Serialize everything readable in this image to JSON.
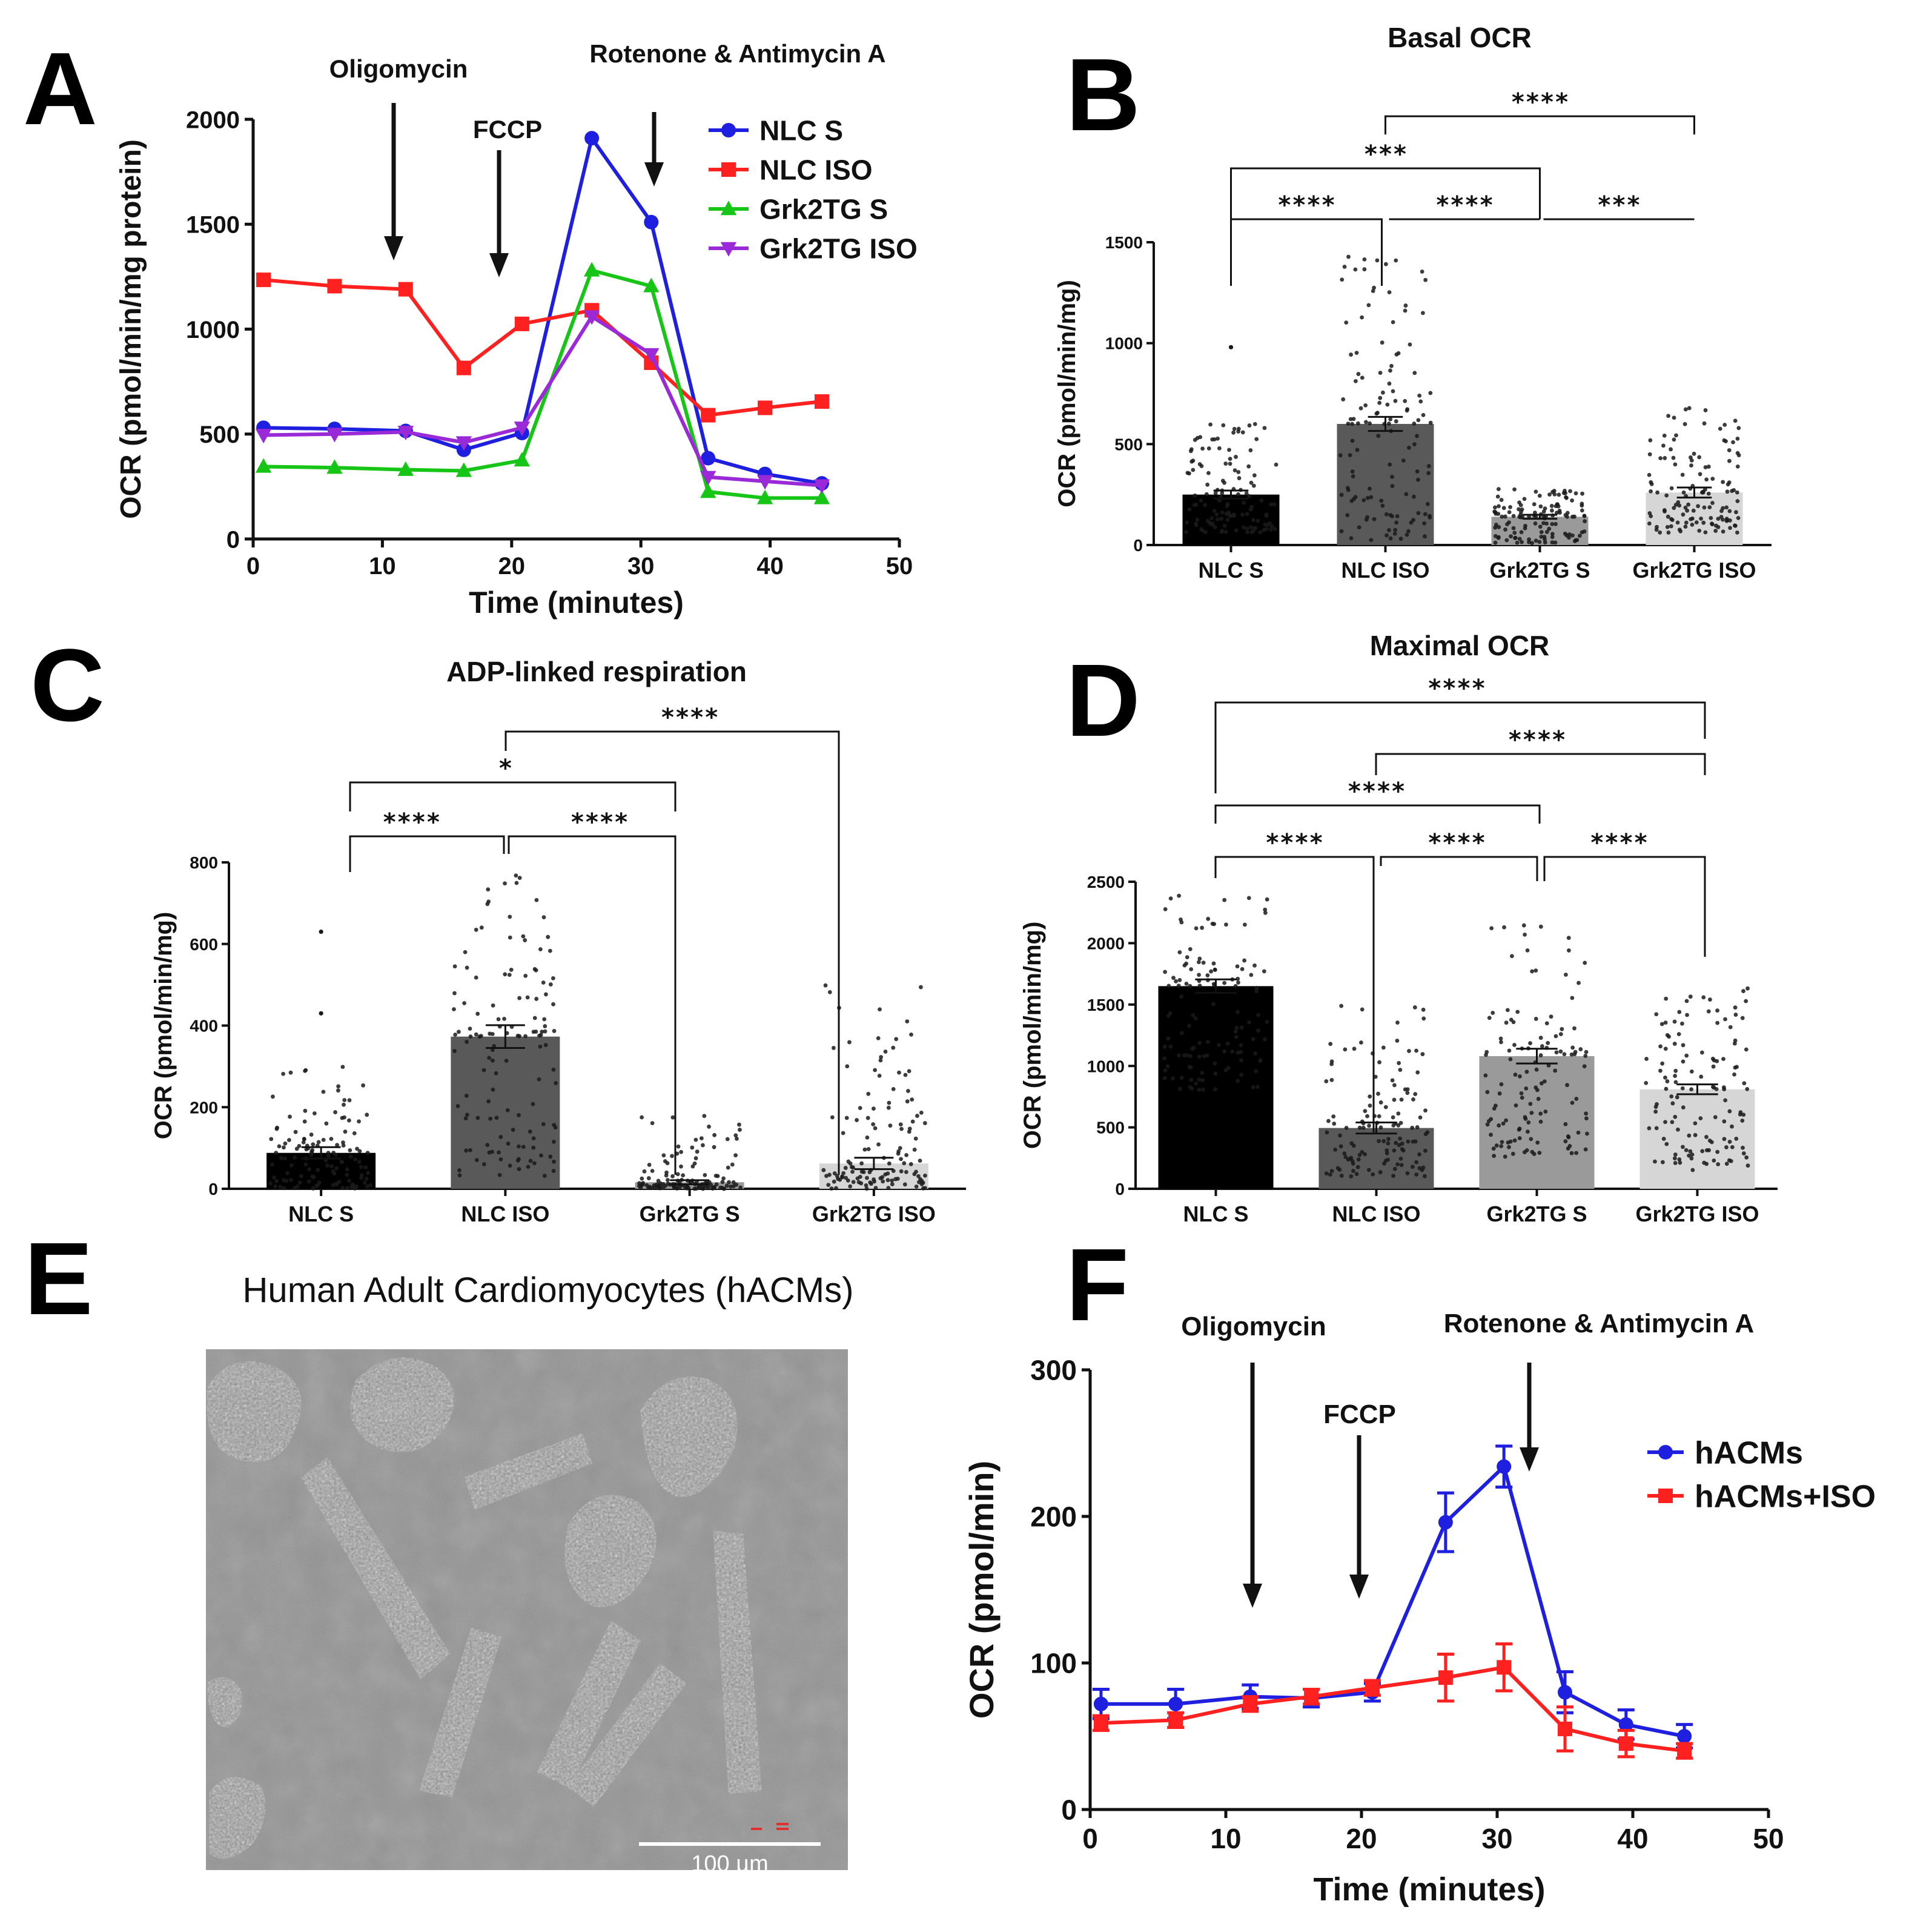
{
  "panel_labels": {
    "A": "A",
    "B": "B",
    "C": "C",
    "D": "D",
    "E": "E",
    "F": "F"
  },
  "chart_data": [
    {
      "id": "A",
      "type": "line",
      "title": "",
      "xlabel": "Time (minutes)",
      "ylabel": "OCR (pmol/min/mg protein)",
      "xlim": [
        0,
        50
      ],
      "ylim": [
        0,
        2000
      ],
      "xticks": [
        0,
        10,
        20,
        30,
        40,
        50
      ],
      "yticks": [
        0,
        500,
        1000,
        1500,
        2000
      ],
      "annotations": [
        "Oligomycin",
        "FCCP",
        "Rotenone & Antimycin A"
      ],
      "x": [
        0.8,
        6.3,
        11.8,
        16.3,
        20.8,
        26.2,
        30.8,
        35.2,
        39.6,
        44.0
      ],
      "series": [
        {
          "name": "NLC S",
          "color": "#1f1fe0",
          "marker": "circle",
          "values": [
            530,
            525,
            515,
            425,
            505,
            1910,
            1510,
            385,
            310,
            265
          ]
        },
        {
          "name": "NLC ISO",
          "color": "#ff2020",
          "marker": "square",
          "values": [
            1235,
            1205,
            1190,
            815,
            1025,
            1090,
            840,
            590,
            625,
            655
          ]
        },
        {
          "name": "Grk2TG S",
          "color": "#16c516",
          "marker": "triangle-up",
          "values": [
            345,
            340,
            330,
            325,
            375,
            1280,
            1205,
            225,
            195,
            195
          ]
        },
        {
          "name": "Grk2TG ISO",
          "color": "#9a29d8",
          "marker": "triangle-down",
          "values": [
            495,
            500,
            510,
            460,
            530,
            1060,
            880,
            295,
            275,
            255
          ]
        }
      ]
    },
    {
      "id": "B",
      "type": "bar",
      "title": "Basal OCR",
      "ylabel": "OCR (pmol/min/mg)",
      "ylim": [
        0,
        1500
      ],
      "yticks": [
        0,
        500,
        1000,
        1500
      ],
      "categories": [
        "NLC S",
        "NLC ISO",
        "Grk2TG S",
        "Grk2TG ISO"
      ],
      "values": [
        250,
        600,
        140,
        260
      ],
      "sem": [
        20,
        35,
        10,
        25
      ],
      "spread": [
        [
          60,
          600
        ],
        [
          20,
          1450
        ],
        [
          10,
          280
        ],
        [
          60,
          680
        ]
      ],
      "outliers": [
        [
          0,
          980
        ]
      ],
      "colors": [
        "#000000",
        "#595959",
        "#9a9a9a",
        "#d6d6d6"
      ],
      "comparisons": [
        {
          "a": 1,
          "b": 3,
          "label": "****"
        },
        {
          "a": 0,
          "b": 2,
          "label": "***"
        },
        {
          "a": 0,
          "b": 1,
          "label": "****"
        },
        {
          "a": 1,
          "b": 2,
          "label": "****"
        },
        {
          "a": 2,
          "b": 3,
          "label": "***"
        }
      ]
    },
    {
      "id": "C",
      "type": "bar",
      "title": "ADP-linked respiration",
      "ylabel": "OCR (pmol/min/mg)",
      "ylim": [
        0,
        800
      ],
      "yticks": [
        0,
        200,
        400,
        600,
        800
      ],
      "categories": [
        "NLC S",
        "NLC ISO",
        "Grk2TG S",
        "Grk2TG ISO"
      ],
      "values": [
        88,
        373,
        16,
        62
      ],
      "sem": [
        14,
        28,
        5,
        14
      ],
      "spread": [
        [
          0,
          300
        ],
        [
          30,
          780
        ],
        [
          0,
          180
        ],
        [
          0,
          500
        ]
      ],
      "outliers": [
        [
          0,
          630
        ],
        [
          0,
          430
        ]
      ],
      "colors": [
        "#000000",
        "#595959",
        "#9a9a9a",
        "#d6d6d6"
      ],
      "comparisons": [
        {
          "a": 1,
          "b": 3,
          "label": "****"
        },
        {
          "a": 0,
          "b": 2,
          "label": "*"
        },
        {
          "a": 0,
          "b": 1,
          "label": "****"
        },
        {
          "a": 1,
          "b": 2,
          "label": "****"
        }
      ]
    },
    {
      "id": "D",
      "type": "bar",
      "title": "Maximal OCR",
      "ylabel": "OCR (pmol/min/mg)",
      "ylim": [
        0,
        2500
      ],
      "yticks": [
        0,
        500,
        1000,
        1500,
        2000,
        2500
      ],
      "categories": [
        "NLC S",
        "NLC ISO",
        "Grk2TG S",
        "Grk2TG ISO"
      ],
      "values": [
        1650,
        495,
        1080,
        810
      ],
      "sem": [
        55,
        45,
        60,
        40
      ],
      "spread": [
        [
          800,
          2450
        ],
        [
          100,
          1500
        ],
        [
          250,
          2150
        ],
        [
          150,
          1650
        ]
      ],
      "outliers": [],
      "colors": [
        "#000000",
        "#595959",
        "#9a9a9a",
        "#d6d6d6"
      ],
      "comparisons": [
        {
          "a": 0,
          "b": 3,
          "label": "****"
        },
        {
          "a": 1,
          "b": 3,
          "label": "****"
        },
        {
          "a": 0,
          "b": 2,
          "label": "****"
        },
        {
          "a": 0,
          "b": 1,
          "label": "****"
        },
        {
          "a": 1,
          "b": 2,
          "label": "****"
        },
        {
          "a": 2,
          "b": 3,
          "label": "****"
        }
      ]
    },
    {
      "id": "F",
      "type": "line",
      "title": "",
      "xlabel": "Time (minutes)",
      "ylabel": "OCR (pmol/min)",
      "xlim": [
        0,
        50
      ],
      "ylim": [
        0,
        300
      ],
      "xticks": [
        0,
        10,
        20,
        30,
        40,
        50
      ],
      "yticks": [
        0,
        100,
        200,
        300
      ],
      "annotations": [
        "Oligomycin",
        "FCCP",
        "Rotenone & Antimycin A"
      ],
      "x": [
        0.8,
        6.3,
        11.8,
        16.3,
        20.8,
        26.2,
        30.5,
        35.0,
        39.5,
        43.8
      ],
      "series": [
        {
          "name": "hACMs",
          "color": "#1f1fe0",
          "marker": "circle",
          "values": [
            72,
            72,
            77,
            76,
            80,
            196,
            234,
            80,
            58,
            50
          ],
          "errors": [
            10,
            10,
            8,
            6,
            6,
            20,
            14,
            14,
            10,
            8
          ]
        },
        {
          "name": "hACMs+ISO",
          "color": "#ff2020",
          "marker": "square",
          "values": [
            59,
            61,
            72,
            77,
            83,
            90,
            97,
            55,
            45,
            40
          ],
          "errors": [
            5,
            5,
            5,
            5,
            5,
            16,
            16,
            15,
            9,
            5
          ]
        }
      ]
    }
  ],
  "image_panel": {
    "title": "Human Adult Cardiomyocytes (hACMs)",
    "scale_bar": "100 µm"
  }
}
